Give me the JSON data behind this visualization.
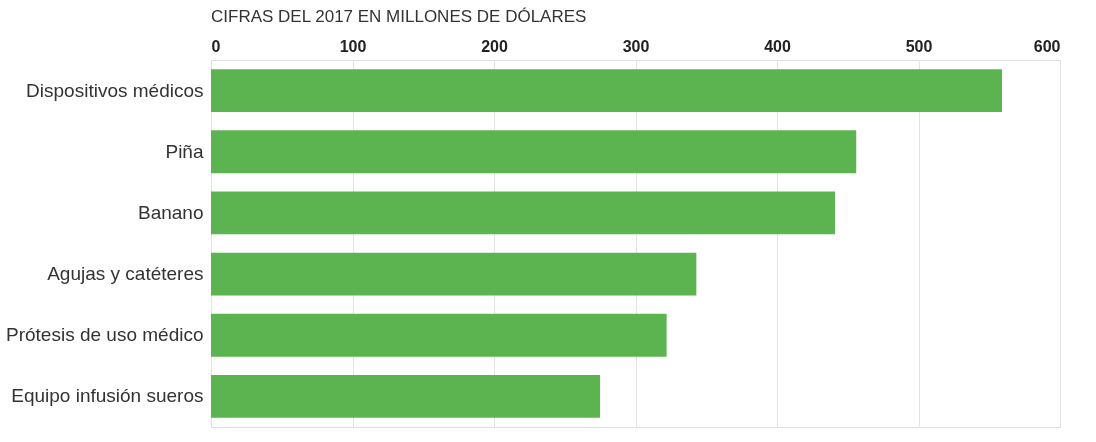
{
  "chart_data": {
    "type": "bar",
    "orientation": "horizontal",
    "title": "CIFRAS DEL 2017 EN MILLONES DE DÓLARES",
    "categories": [
      "Dispositivos médicos",
      "Piña",
      "Banano",
      "Agujas y catéteres",
      "Prótesis de uso médico",
      "Equipo infusión sueros"
    ],
    "values": [
      559,
      456,
      441,
      343,
      322,
      275
    ],
    "color": "#5bb450",
    "xlim": [
      0,
      600
    ],
    "xticks": [
      0,
      100,
      200,
      300,
      400,
      500,
      600
    ],
    "grid": "x"
  }
}
